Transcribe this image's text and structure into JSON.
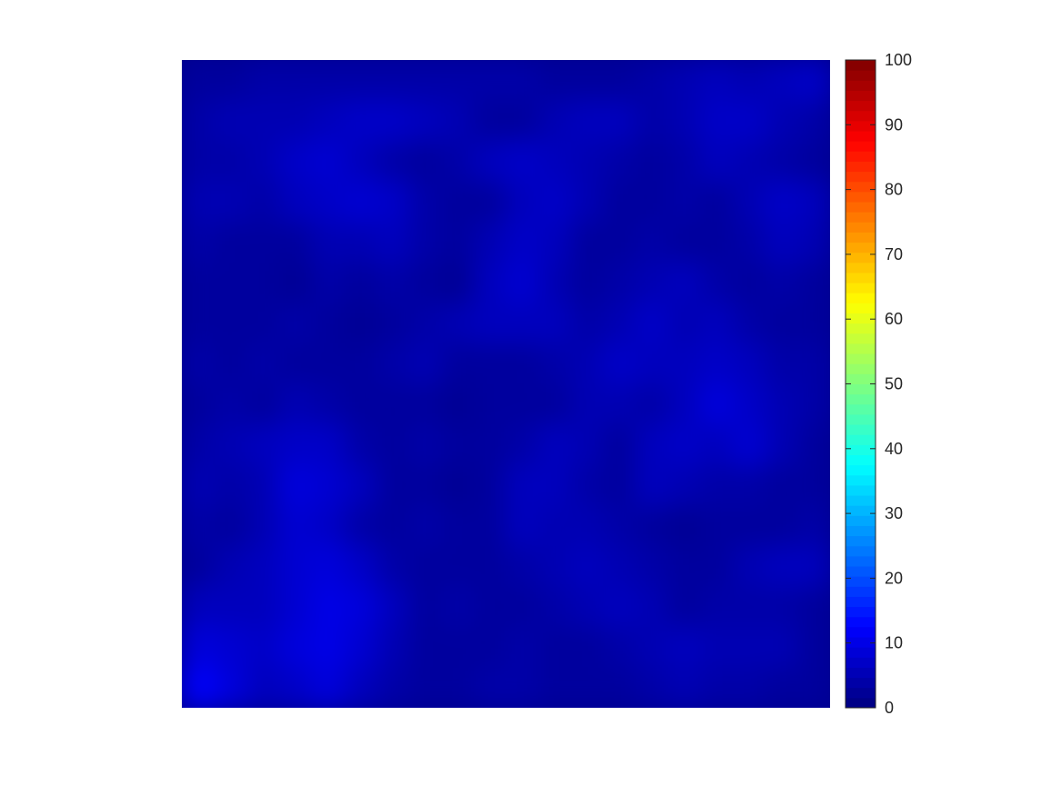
{
  "chart_data": {
    "type": "heatmap",
    "title": "",
    "xlabel": "",
    "ylabel": "",
    "colormap": "jet",
    "clim": [
      0,
      100
    ],
    "colorbar": {
      "location": "right",
      "ticks": [
        0,
        10,
        20,
        30,
        40,
        50,
        60,
        70,
        80,
        90,
        100
      ],
      "tick_labels": [
        "0",
        "10",
        "20",
        "30",
        "40",
        "50",
        "60",
        "70",
        "80",
        "90",
        "100"
      ]
    },
    "grid": false,
    "values": [
      [
        3,
        3,
        4,
        4,
        4,
        4,
        4,
        4,
        4,
        4,
        4,
        3,
        3,
        3,
        4,
        5,
        6,
        5,
        6,
        7
      ],
      [
        4,
        5,
        5,
        5,
        6,
        7,
        7,
        6,
        5,
        3,
        3,
        5,
        6,
        6,
        4,
        5,
        7,
        7,
        5,
        4
      ],
      [
        4,
        4,
        5,
        7,
        8,
        6,
        4,
        3,
        4,
        6,
        7,
        6,
        5,
        4,
        3,
        4,
        6,
        5,
        4,
        3
      ],
      [
        5,
        5,
        4,
        6,
        7,
        8,
        7,
        4,
        3,
        3,
        6,
        7,
        5,
        3,
        3,
        4,
        3,
        5,
        7,
        6
      ],
      [
        4,
        3,
        3,
        3,
        5,
        5,
        6,
        4,
        3,
        5,
        7,
        6,
        3,
        3,
        4,
        3,
        3,
        4,
        6,
        5
      ],
      [
        3,
        3,
        3,
        2,
        4,
        3,
        4,
        3,
        2,
        6,
        8,
        5,
        3,
        4,
        5,
        6,
        4,
        3,
        4,
        3
      ],
      [
        3,
        3,
        3,
        4,
        3,
        2,
        3,
        4,
        5,
        6,
        6,
        6,
        4,
        5,
        7,
        5,
        6,
        4,
        3,
        3
      ],
      [
        4,
        3,
        4,
        3,
        3,
        3,
        4,
        5,
        3,
        3,
        3,
        4,
        5,
        7,
        6,
        6,
        7,
        6,
        4,
        4
      ],
      [
        3,
        4,
        3,
        5,
        4,
        3,
        3,
        3,
        2,
        3,
        3,
        3,
        5,
        5,
        4,
        6,
        9,
        7,
        5,
        4
      ],
      [
        4,
        5,
        6,
        7,
        7,
        4,
        3,
        4,
        3,
        3,
        4,
        6,
        5,
        3,
        6,
        7,
        6,
        8,
        5,
        3
      ],
      [
        5,
        4,
        5,
        9,
        8,
        6,
        3,
        3,
        2,
        3,
        6,
        6,
        4,
        3,
        6,
        5,
        4,
        4,
        3,
        3
      ],
      [
        4,
        3,
        5,
        8,
        7,
        4,
        3,
        4,
        3,
        3,
        6,
        5,
        5,
        4,
        3,
        2,
        3,
        3,
        3,
        4
      ],
      [
        3,
        5,
        6,
        8,
        9,
        7,
        4,
        3,
        3,
        3,
        4,
        5,
        6,
        5,
        4,
        3,
        3,
        5,
        6,
        6
      ],
      [
        6,
        6,
        6,
        8,
        10,
        9,
        6,
        3,
        4,
        3,
        3,
        4,
        5,
        6,
        5,
        3,
        4,
        4,
        4,
        3
      ],
      [
        9,
        8,
        7,
        9,
        10,
        8,
        5,
        3,
        3,
        3,
        4,
        3,
        3,
        4,
        5,
        6,
        5,
        5,
        5,
        3
      ],
      [
        12,
        9,
        6,
        7,
        9,
        6,
        4,
        3,
        3,
        4,
        4,
        3,
        3,
        3,
        4,
        5,
        4,
        4,
        3,
        3
      ]
    ]
  }
}
